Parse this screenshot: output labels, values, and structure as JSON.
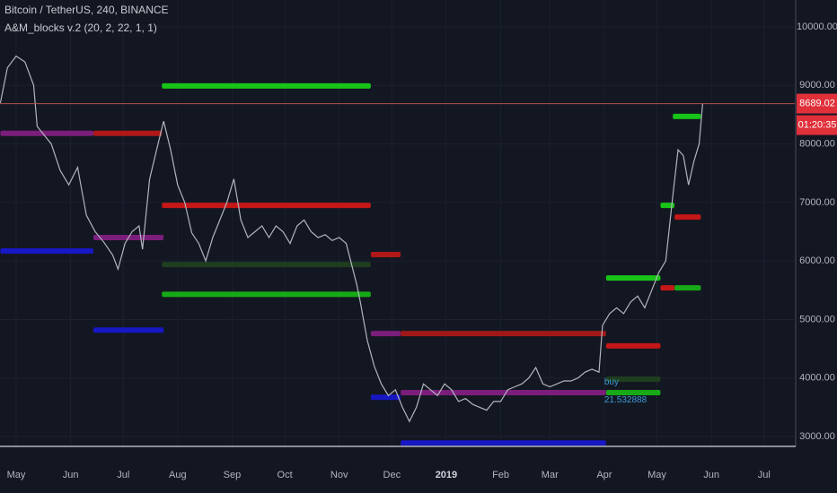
{
  "chart_data": {
    "type": "line",
    "title": "Bitcoin / TetherUS, 240, BINANCE",
    "subtitle": "A&M_blocks v.2 (20, 2, 22, 1, 1)",
    "x": [
      -9,
      -5,
      0,
      5,
      10,
      12,
      20,
      25,
      30,
      35,
      40,
      45,
      50,
      55,
      58,
      62,
      66,
      70,
      72,
      76,
      80,
      84,
      88,
      92,
      96,
      100,
      104,
      108,
      112,
      116,
      120,
      124,
      128,
      132,
      136,
      140,
      144,
      148,
      152,
      156,
      160,
      164,
      168,
      172,
      176,
      180,
      184,
      188,
      194,
      196,
      200,
      204,
      208,
      212,
      216,
      220,
      224,
      228,
      232,
      236,
      240,
      244,
      248,
      252,
      256,
      260,
      264,
      268,
      272,
      276,
      280,
      284,
      288,
      292,
      296,
      300,
      304,
      308,
      312,
      316,
      320,
      324,
      328,
      332,
      334,
      338,
      342,
      346,
      350,
      354,
      358,
      362,
      366,
      370,
      374,
      377,
      380,
      383,
      386,
      389,
      391
    ],
    "series": [
      {
        "name": "BTCUSDT",
        "color": "#b2b5be",
        "values": [
          8700,
          9300,
          9500,
          9400,
          9000,
          8300,
          8000,
          7550,
          7300,
          7600,
          6780,
          6500,
          6320,
          6100,
          5860,
          6300,
          6500,
          6600,
          6200,
          7400,
          7900,
          8390,
          7900,
          7300,
          7000,
          6480,
          6300,
          6000,
          6400,
          6700,
          7000,
          7400,
          6700,
          6400,
          6500,
          6600,
          6400,
          6600,
          6500,
          6300,
          6600,
          6700,
          6500,
          6400,
          6450,
          6350,
          6400,
          6300,
          5600,
          5300,
          4640,
          4200,
          3900,
          3700,
          3800,
          3500,
          3260,
          3500,
          3900,
          3800,
          3700,
          3900,
          3800,
          3600,
          3650,
          3550,
          3500,
          3450,
          3600,
          3600,
          3800,
          3850,
          3900,
          4000,
          4180,
          3900,
          3850,
          3900,
          3950,
          3950,
          4000,
          4100,
          4150,
          4100,
          4900,
          5100,
          5200,
          5100,
          5300,
          5400,
          5200,
          5500,
          5800,
          6000,
          7100,
          7900,
          7800,
          7300,
          7700,
          8000,
          8689.02
        ]
      }
    ],
    "blocks": [
      {
        "x": [
          -9,
          44
        ],
        "value": 8180,
        "color": "#7b1e7b"
      },
      {
        "x": [
          44,
          83
        ],
        "value": 8180,
        "color": "#b01818"
      },
      {
        "x": [
          -9,
          44
        ],
        "value": 6170,
        "color": "#1717c4"
      },
      {
        "x": [
          44,
          84
        ],
        "value": 6400,
        "color": "#7b1e7b"
      },
      {
        "x": [
          44,
          84
        ],
        "value": 4820,
        "color": "#1717c4"
      },
      {
        "x": [
          83,
          202
        ],
        "value": 8990,
        "color": "#17c417"
      },
      {
        "x": [
          83,
          202
        ],
        "value": 6950,
        "color": "#c41717"
      },
      {
        "x": [
          83,
          202
        ],
        "value": 5940,
        "color": "#1f3d1f"
      },
      {
        "x": [
          83,
          202
        ],
        "value": 5430,
        "color": "#17a917"
      },
      {
        "x": [
          202,
          219
        ],
        "value": 6110,
        "color": "#b01818"
      },
      {
        "x": [
          202,
          219
        ],
        "value": 4760,
        "color": "#7b1e7b"
      },
      {
        "x": [
          219,
          336
        ],
        "value": 4760,
        "color": "#a01818"
      },
      {
        "x": [
          202,
          219
        ],
        "value": 3670,
        "color": "#1717c4"
      },
      {
        "x": [
          219,
          336
        ],
        "value": 3750,
        "color": "#7b1e7b"
      },
      {
        "x": [
          219,
          336
        ],
        "value": 2890,
        "color": "#1717c4"
      },
      {
        "x": [
          336,
          367
        ],
        "value": 5710,
        "color": "#17c417"
      },
      {
        "x": [
          336,
          367
        ],
        "value": 4550,
        "color": "#c41717"
      },
      {
        "x": [
          336,
          367
        ],
        "value": 3980,
        "color": "#1f3d1f"
      },
      {
        "x": [
          336,
          367
        ],
        "value": 3750,
        "color": "#17a917"
      },
      {
        "x": [
          367,
          375
        ],
        "value": 6950,
        "color": "#17c417"
      },
      {
        "x": [
          367,
          375
        ],
        "value": 5540,
        "color": "#c41717"
      },
      {
        "x": [
          375,
          390
        ],
        "value": 5540,
        "color": "#17a917"
      },
      {
        "x": [
          374,
          390
        ],
        "value": 8470,
        "color": "#17c417"
      },
      {
        "x": [
          375,
          390
        ],
        "value": 6750,
        "color": "#c41717"
      }
    ],
    "xlim": [
      -9.2,
      443.5
    ],
    "xticks": [
      {
        "value": 0,
        "label": "May"
      },
      {
        "value": 31,
        "label": "Jun"
      },
      {
        "value": 61,
        "label": "Jul"
      },
      {
        "value": 92,
        "label": "Aug"
      },
      {
        "value": 123,
        "label": "Sep"
      },
      {
        "value": 153,
        "label": "Oct"
      },
      {
        "value": 184,
        "label": "Nov"
      },
      {
        "value": 214,
        "label": "Dec"
      },
      {
        "value": 245,
        "label": "2019"
      },
      {
        "value": 276,
        "label": "Feb"
      },
      {
        "value": 304,
        "label": "Mar"
      },
      {
        "value": 335,
        "label": "Apr"
      },
      {
        "value": 365,
        "label": "May"
      },
      {
        "value": 396,
        "label": "Jun"
      },
      {
        "value": 426,
        "label": "Jul"
      }
    ],
    "ylim": [
      2832,
      10459
    ],
    "yticks": [
      {
        "value": 3000,
        "label": "3000.00"
      },
      {
        "value": 4000,
        "label": "4000.00"
      },
      {
        "value": 5000,
        "label": "5000.00"
      },
      {
        "value": 6000,
        "label": "6000.00"
      },
      {
        "value": 7000,
        "label": "7000.00"
      },
      {
        "value": 8000,
        "label": "8000.00"
      },
      {
        "value": 9000,
        "label": "9000.00"
      },
      {
        "value": 10000,
        "label": "10000.00"
      }
    ],
    "last_price": 8689.02,
    "countdown": "01:20:35",
    "annotations": [
      {
        "text": "buy",
        "x": 335,
        "y": 3930
      },
      {
        "text": "21.532888",
        "x": 335,
        "y": 3620
      }
    ],
    "grid": true
  }
}
